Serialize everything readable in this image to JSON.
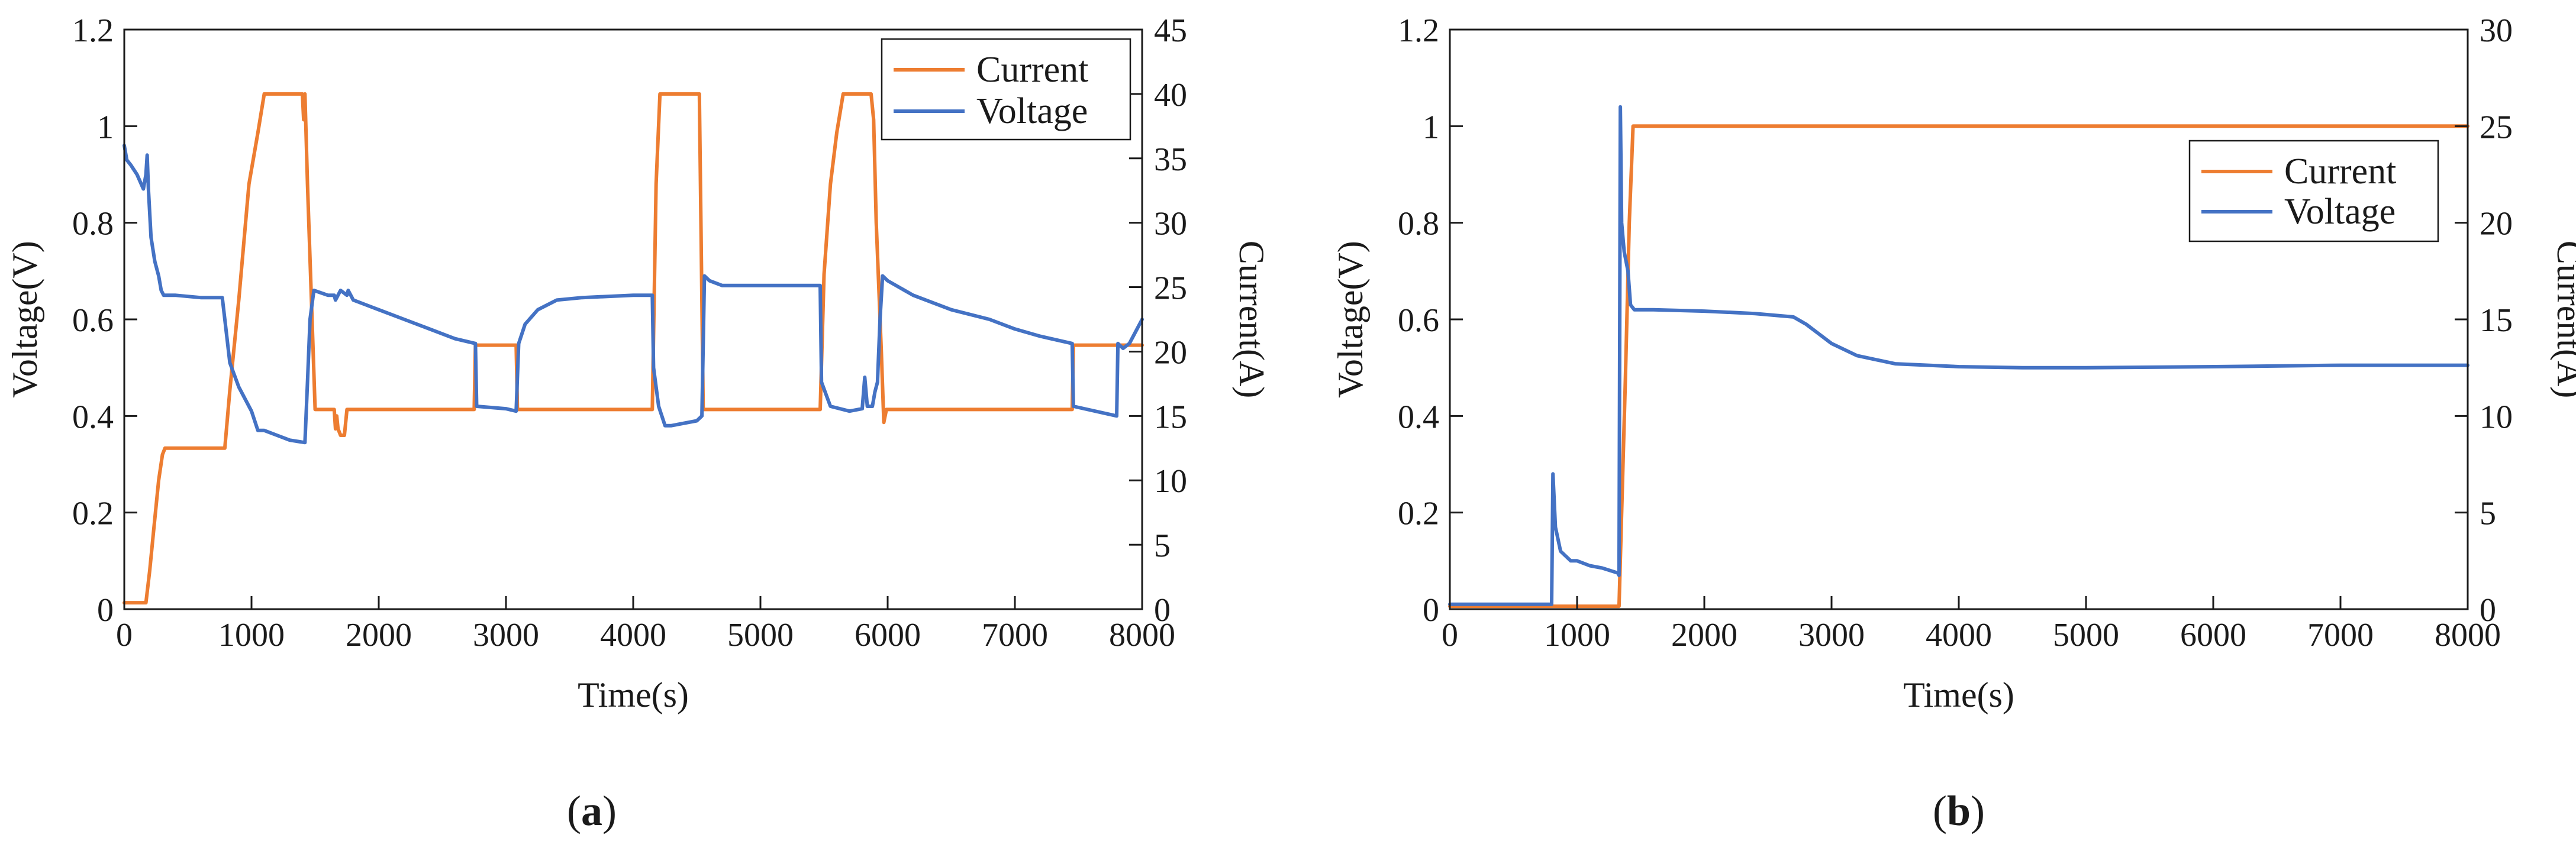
{
  "colors": {
    "current": "#ED7D31",
    "voltage": "#4472C4",
    "axis": "#1a1a1a"
  },
  "chart_data": [
    {
      "type": "line",
      "panel_label": "(a)",
      "panel_letter": "a",
      "xlabel": "Time(s)",
      "ylabel_left": "Voltage(V)",
      "ylabel_right": "Current(A)",
      "xlim": [
        0,
        8000
      ],
      "ylim_left": [
        0,
        1.2
      ],
      "ylim_right": [
        0,
        45
      ],
      "xticks": [
        "0",
        "1000",
        "2000",
        "3000",
        "4000",
        "5000",
        "6000",
        "7000",
        "8000"
      ],
      "yticks_left": [
        "0",
        "0.2",
        "0.4",
        "0.6",
        "0.8",
        "1",
        "1.2"
      ],
      "yticks_right": [
        "0",
        "5",
        "10",
        "15",
        "20",
        "25",
        "30",
        "35",
        "40",
        "45"
      ],
      "legend": {
        "position": "top-right",
        "entries": [
          "Current",
          "Voltage"
        ]
      },
      "series": [
        {
          "name": "Current",
          "axis": "right",
          "color": "#ED7D31",
          "points": [
            [
              0,
              0.5
            ],
            [
              50,
              0.5
            ],
            [
              170,
              0.5
            ],
            [
              200,
              3
            ],
            [
              230,
              6
            ],
            [
              270,
              10
            ],
            [
              300,
              12
            ],
            [
              320,
              12.5
            ],
            [
              790,
              12.5
            ],
            [
              830,
              17
            ],
            [
              900,
              24
            ],
            [
              980,
              33
            ],
            [
              1050,
              37
            ],
            [
              1100,
              40
            ],
            [
              1400,
              40
            ],
            [
              1410,
              38
            ],
            [
              1420,
              40
            ],
            [
              1440,
              33
            ],
            [
              1500,
              15.5
            ],
            [
              1650,
              15.5
            ],
            [
              1660,
              14
            ],
            [
              1670,
              15
            ],
            [
              1680,
              14
            ],
            [
              1700,
              13.5
            ],
            [
              1730,
              13.5
            ],
            [
              1750,
              15.5
            ],
            [
              2750,
              15.5
            ],
            [
              2760,
              20.5
            ],
            [
              3080,
              20.5
            ],
            [
              3090,
              15.5
            ],
            [
              4150,
              15.5
            ],
            [
              4180,
              33
            ],
            [
              4210,
              40
            ],
            [
              4520,
              40
            ],
            [
              4550,
              15.5
            ],
            [
              5470,
              15.5
            ],
            [
              5500,
              26
            ],
            [
              5550,
              33
            ],
            [
              5600,
              37
            ],
            [
              5650,
              40
            ],
            [
              5870,
              40
            ],
            [
              5890,
              38
            ],
            [
              5910,
              30
            ],
            [
              5950,
              20
            ],
            [
              5970,
              14.5
            ],
            [
              5990,
              15.5
            ],
            [
              7450,
              15.5
            ],
            [
              7460,
              20.5
            ],
            [
              8000,
              20.5
            ]
          ]
        },
        {
          "name": "Voltage",
          "axis": "left",
          "color": "#4472C4",
          "points": [
            [
              0,
              0.96
            ],
            [
              20,
              0.93
            ],
            [
              50,
              0.92
            ],
            [
              100,
              0.9
            ],
            [
              150,
              0.87
            ],
            [
              170,
              0.9
            ],
            [
              180,
              0.94
            ],
            [
              190,
              0.87
            ],
            [
              210,
              0.77
            ],
            [
              240,
              0.72
            ],
            [
              270,
              0.69
            ],
            [
              290,
              0.66
            ],
            [
              310,
              0.65
            ],
            [
              400,
              0.65
            ],
            [
              600,
              0.645
            ],
            [
              770,
              0.645
            ],
            [
              790,
              0.6
            ],
            [
              830,
              0.51
            ],
            [
              900,
              0.46
            ],
            [
              1000,
              0.41
            ],
            [
              1050,
              0.37
            ],
            [
              1100,
              0.37
            ],
            [
              1200,
              0.36
            ],
            [
              1300,
              0.35
            ],
            [
              1420,
              0.345
            ],
            [
              1440,
              0.47
            ],
            [
              1460,
              0.6
            ],
            [
              1490,
              0.66
            ],
            [
              1600,
              0.65
            ],
            [
              1650,
              0.65
            ],
            [
              1660,
              0.64
            ],
            [
              1700,
              0.66
            ],
            [
              1750,
              0.65
            ],
            [
              1760,
              0.66
            ],
            [
              1800,
              0.64
            ],
            [
              1900,
              0.63
            ],
            [
              2000,
              0.62
            ],
            [
              2200,
              0.6
            ],
            [
              2400,
              0.58
            ],
            [
              2600,
              0.56
            ],
            [
              2760,
              0.55
            ],
            [
              2770,
              0.42
            ],
            [
              3000,
              0.415
            ],
            [
              3080,
              0.41
            ],
            [
              3100,
              0.55
            ],
            [
              3150,
              0.59
            ],
            [
              3250,
              0.62
            ],
            [
              3400,
              0.64
            ],
            [
              3600,
              0.645
            ],
            [
              4000,
              0.65
            ],
            [
              4150,
              0.65
            ],
            [
              4160,
              0.5
            ],
            [
              4200,
              0.42
            ],
            [
              4250,
              0.38
            ],
            [
              4300,
              0.38
            ],
            [
              4500,
              0.39
            ],
            [
              4540,
              0.4
            ],
            [
              4560,
              0.69
            ],
            [
              4600,
              0.68
            ],
            [
              4700,
              0.67
            ],
            [
              5470,
              0.67
            ],
            [
              5480,
              0.47
            ],
            [
              5550,
              0.42
            ],
            [
              5700,
              0.41
            ],
            [
              5800,
              0.415
            ],
            [
              5820,
              0.48
            ],
            [
              5840,
              0.42
            ],
            [
              5880,
              0.42
            ],
            [
              5900,
              0.45
            ],
            [
              5920,
              0.47
            ],
            [
              5940,
              0.6
            ],
            [
              5960,
              0.69
            ],
            [
              6000,
              0.68
            ],
            [
              6200,
              0.65
            ],
            [
              6500,
              0.62
            ],
            [
              6800,
              0.6
            ],
            [
              7000,
              0.58
            ],
            [
              7200,
              0.565
            ],
            [
              7450,
              0.55
            ],
            [
              7460,
              0.42
            ],
            [
              7800,
              0.4
            ],
            [
              7810,
              0.55
            ],
            [
              7850,
              0.54
            ],
            [
              7900,
              0.55
            ],
            [
              7960,
              0.58
            ],
            [
              8000,
              0.6
            ]
          ]
        }
      ]
    },
    {
      "type": "line",
      "panel_label": "(b)",
      "panel_letter": "b",
      "xlabel": "Time(s)",
      "ylabel_left": "Voltage(V)",
      "ylabel_right": "Current(A)",
      "xlim": [
        0,
        8000
      ],
      "ylim_left": [
        0,
        1.2
      ],
      "ylim_right": [
        0,
        30
      ],
      "xticks": [
        "0",
        "1000",
        "2000",
        "3000",
        "4000",
        "5000",
        "6000",
        "7000",
        "8000"
      ],
      "yticks_left": [
        "0",
        "0.2",
        "0.4",
        "0.6",
        "0.8",
        "1",
        "1.2"
      ],
      "yticks_right": [
        "0",
        "5",
        "10",
        "15",
        "20",
        "25",
        "30"
      ],
      "legend": {
        "position": "top-right",
        "entries": [
          "Current",
          "Voltage"
        ]
      },
      "series": [
        {
          "name": "Current",
          "axis": "right",
          "color": "#ED7D31",
          "points": [
            [
              0,
              0.15
            ],
            [
              1330,
              0.15
            ],
            [
              1380,
              12
            ],
            [
              1410,
              20
            ],
            [
              1440,
              25
            ],
            [
              8000,
              25
            ]
          ]
        },
        {
          "name": "Voltage",
          "axis": "left",
          "color": "#4472C4",
          "points": [
            [
              0,
              0.01
            ],
            [
              790,
              0.01
            ],
            [
              800,
              0.01
            ],
            [
              810,
              0.28
            ],
            [
              830,
              0.17
            ],
            [
              870,
              0.12
            ],
            [
              950,
              0.1
            ],
            [
              1000,
              0.1
            ],
            [
              1100,
              0.09
            ],
            [
              1200,
              0.085
            ],
            [
              1320,
              0.075
            ],
            [
              1330,
              0.07
            ],
            [
              1340,
              1.04
            ],
            [
              1350,
              0.8
            ],
            [
              1370,
              0.74
            ],
            [
              1400,
              0.7
            ],
            [
              1420,
              0.63
            ],
            [
              1450,
              0.62
            ],
            [
              1600,
              0.62
            ],
            [
              2000,
              0.617
            ],
            [
              2400,
              0.612
            ],
            [
              2700,
              0.605
            ],
            [
              2800,
              0.59
            ],
            [
              2900,
              0.57
            ],
            [
              3000,
              0.55
            ],
            [
              3200,
              0.525
            ],
            [
              3500,
              0.508
            ],
            [
              4000,
              0.502
            ],
            [
              4500,
              0.5
            ],
            [
              5000,
              0.5
            ],
            [
              6000,
              0.502
            ],
            [
              7000,
              0.505
            ],
            [
              8000,
              0.505
            ]
          ]
        }
      ]
    }
  ]
}
